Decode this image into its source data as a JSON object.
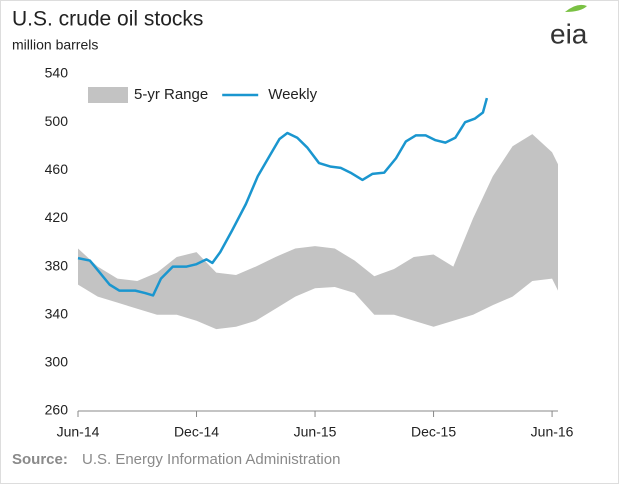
{
  "chart_data": {
    "type": "line",
    "title": "U.S. crude oil stocks",
    "subtitle": "million barrels",
    "logo": "eia",
    "source_label": "Source:",
    "source_text": "U.S. Energy Information Administration",
    "xlim": [
      0,
      24.3
    ],
    "xticks": [
      {
        "value": 0,
        "label": "Jun-14"
      },
      {
        "value": 6,
        "label": "Dec-14"
      },
      {
        "value": 12,
        "label": "Jun-15"
      },
      {
        "value": 18,
        "label": "Dec-15"
      },
      {
        "value": 24,
        "label": "Jun-16"
      }
    ],
    "ylim": [
      260,
      540
    ],
    "yticks": [
      260,
      300,
      340,
      380,
      420,
      460,
      500,
      540
    ],
    "grid": false,
    "legend": "top-left",
    "series": [
      {
        "name": "5-yr Range",
        "type": "band",
        "color": "#c3c3c3",
        "x": [
          0,
          1,
          2,
          3,
          4,
          5,
          6,
          7,
          8,
          9,
          10,
          11,
          12,
          13,
          14,
          15,
          16,
          17,
          18,
          19,
          20,
          21,
          22,
          23,
          24,
          24.3
        ],
        "high": [
          395,
          380,
          370,
          368,
          375,
          388,
          392,
          375,
          373,
          380,
          388,
          395,
          397,
          395,
          385,
          372,
          378,
          388,
          390,
          380,
          420,
          455,
          480,
          490,
          475,
          465
        ],
        "low": [
          365,
          355,
          350,
          345,
          340,
          340,
          335,
          328,
          330,
          335,
          345,
          355,
          362,
          363,
          358,
          340,
          340,
          335,
          330,
          335,
          340,
          348,
          355,
          368,
          370,
          360
        ]
      },
      {
        "name": "Weekly",
        "type": "line",
        "color": "#1a96cf",
        "x": [
          0,
          0.6,
          1.1,
          1.6,
          2.1,
          2.9,
          3.4,
          3.8,
          4.2,
          4.8,
          5.5,
          6.0,
          6.5,
          6.8,
          7.2,
          7.8,
          8.5,
          9.1,
          9.7,
          10.2,
          10.6,
          11.1,
          11.6,
          12.2,
          12.8,
          13.3,
          13.8,
          14.4,
          14.9,
          15.5,
          16.1,
          16.6,
          17.1,
          17.6,
          18.1,
          18.6,
          19.1,
          19.6,
          20.1,
          20.5,
          20.7
        ],
        "values": [
          387,
          385,
          375,
          365,
          360,
          360,
          358,
          356,
          370,
          380,
          380,
          382,
          386,
          383,
          392,
          410,
          432,
          455,
          472,
          486,
          491,
          487,
          479,
          466,
          463,
          462,
          458,
          452,
          457,
          458,
          470,
          484,
          489,
          489,
          485,
          483,
          487,
          500,
          503,
          508,
          520
        ]
      }
    ]
  }
}
